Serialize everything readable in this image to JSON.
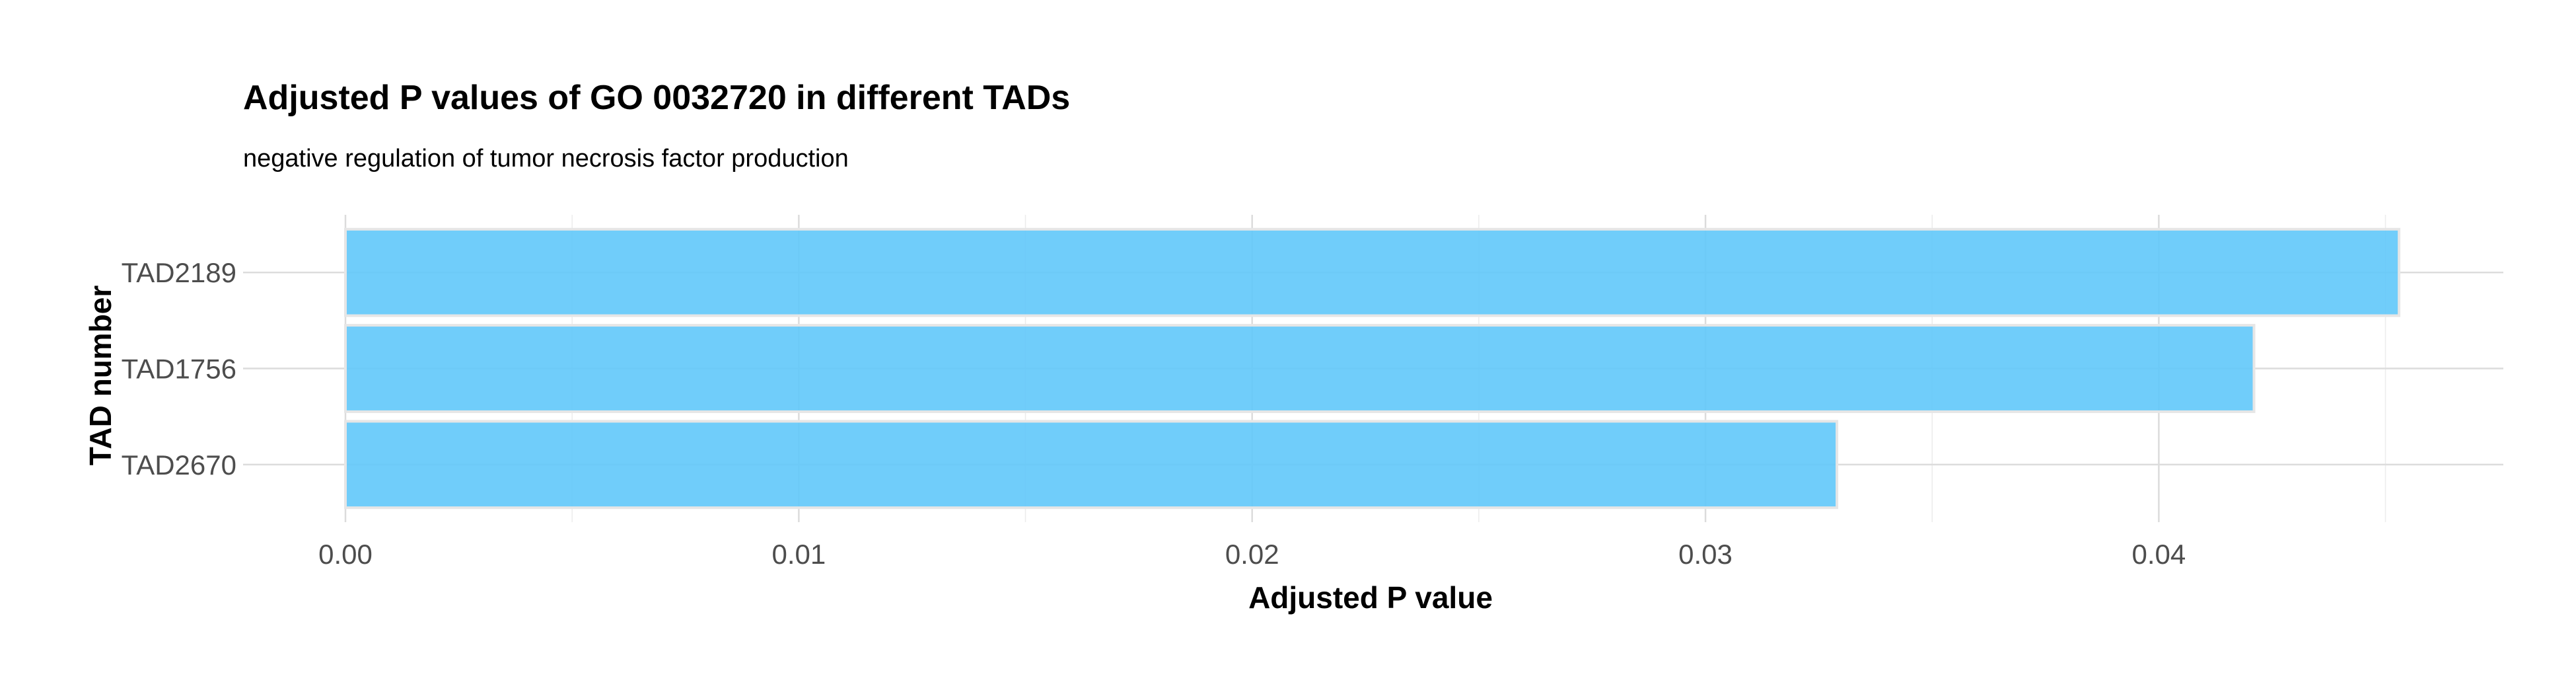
{
  "chart_data": {
    "type": "bar",
    "orientation": "horizontal",
    "title": "Adjusted P values of GO 0032720 in different TADs",
    "subtitle": "negative regulation of tumor necrosis factor production",
    "xlabel": "Adjusted P value",
    "ylabel": "TAD number",
    "categories": [
      "TAD2189",
      "TAD1756",
      "TAD2670"
    ],
    "values": [
      0.0453,
      0.0421,
      0.0329
    ],
    "xlim": [
      0,
      0.0476
    ],
    "x_ticks": [
      0.0,
      0.01,
      0.02,
      0.03,
      0.04
    ],
    "x_tick_labels": [
      "0.00",
      "0.01",
      "0.02",
      "0.03",
      "0.04"
    ],
    "grid": true,
    "legend": "none",
    "bar_color": "#60C8FA",
    "bar_outline_color": "#E6E6E6"
  }
}
